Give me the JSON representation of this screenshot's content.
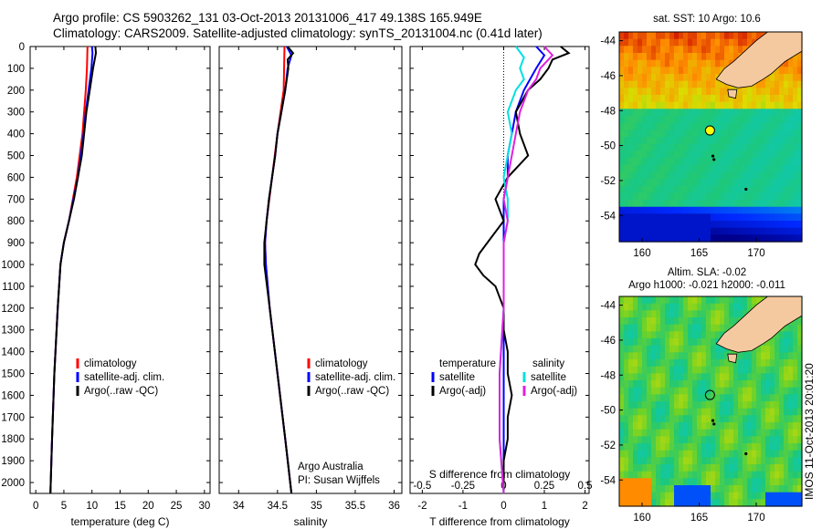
{
  "header": {
    "line1": "Argo profile: CS 5903262_131 03-Oct-2013 20131006_417 49.138S 165.949E",
    "line2": "Climatology: CARS2009. Satellite-adjusted climatology: synTS_20131004.nc (0.41d later)"
  },
  "credits": {
    "org": "Argo Australia",
    "pi": "PI: Susan Wijffels"
  },
  "sidebar_stamp": "IMOS 11-Oct-2013 20:01:20",
  "colors": {
    "climatology": "#ff0000",
    "satellite": "#0000ff",
    "argo": "#000000",
    "salinity_sat": "#00e0e0",
    "salinity_argo": "#e020e0",
    "land": "#f5c9a0"
  },
  "chart_data": [
    {
      "type": "line",
      "name": "temperature-profile",
      "xlabel": "temperature (deg C)",
      "ylabel": "",
      "xlim": [
        -1,
        31
      ],
      "ylim": [
        2050,
        0
      ],
      "xticks": [
        0,
        5,
        10,
        15,
        20,
        25,
        30
      ],
      "yticks": [
        0,
        100,
        200,
        300,
        400,
        500,
        600,
        700,
        800,
        900,
        1000,
        1100,
        1200,
        1300,
        1400,
        1500,
        1600,
        1700,
        1800,
        1900,
        2000
      ],
      "legend": [
        "climatology",
        "satellite-adj. clim.",
        "Argo(..raw -QC)"
      ],
      "series": [
        {
          "depth": [
            0,
            100,
            200,
            400,
            600,
            800,
            900,
            1000,
            1200,
            1500,
            1800,
            2050
          ],
          "values": [
            9.2,
            9.1,
            8.9,
            8.3,
            7.3,
            5.9,
            5.0,
            4.4,
            3.9,
            3.3,
            2.9,
            2.6
          ]
        },
        {
          "depth": [
            0,
            30,
            100,
            200,
            300,
            400,
            500,
            600,
            700,
            800,
            900,
            1000,
            1200,
            1500,
            1800,
            2050
          ],
          "values": [
            10.0,
            10.1,
            9.9,
            9.4,
            8.9,
            8.5,
            8.0,
            7.5,
            6.7,
            5.9,
            5.0,
            4.4,
            3.9,
            3.3,
            2.9,
            2.6
          ]
        },
        {
          "depth": [
            0,
            30,
            100,
            200,
            300,
            400,
            500,
            600,
            700,
            800,
            900,
            1000,
            1200,
            1500,
            1800,
            2050
          ],
          "values": [
            10.6,
            10.7,
            10.2,
            9.6,
            9.0,
            8.6,
            8.2,
            7.5,
            6.8,
            5.9,
            5.0,
            4.4,
            3.9,
            3.3,
            2.9,
            2.6
          ]
        }
      ]
    },
    {
      "type": "line",
      "name": "salinity-profile",
      "xlabel": "salinity",
      "ylabel": "",
      "xlim": [
        33.75,
        36.1
      ],
      "ylim": [
        2050,
        0
      ],
      "xticks": [
        34,
        34.5,
        35,
        35.5,
        36
      ],
      "legend": [
        "climatology",
        "satellite-adj. clim.",
        "Argo(..raw -QC)"
      ],
      "series": [
        {
          "depth": [
            0,
            200,
            400,
            600,
            800,
            900,
            1000,
            1200,
            1500,
            1800,
            2050
          ],
          "values": [
            34.59,
            34.58,
            34.5,
            34.43,
            34.36,
            34.34,
            34.35,
            34.4,
            34.5,
            34.6,
            34.68
          ]
        },
        {
          "depth": [
            0,
            40,
            100,
            200,
            300,
            400,
            500,
            600,
            700,
            800,
            900,
            1000,
            1200,
            1500,
            1800,
            2050
          ],
          "values": [
            34.62,
            34.68,
            34.63,
            34.6,
            34.55,
            34.5,
            34.47,
            34.43,
            34.39,
            34.36,
            34.34,
            34.35,
            34.4,
            34.5,
            34.6,
            34.68
          ]
        },
        {
          "depth": [
            0,
            30,
            60,
            100,
            200,
            300,
            400,
            500,
            600,
            700,
            800,
            900,
            1000,
            1200,
            1500,
            1800,
            2050
          ],
          "values": [
            34.63,
            34.7,
            34.63,
            34.64,
            34.6,
            34.55,
            34.5,
            34.47,
            34.43,
            34.39,
            34.36,
            34.33,
            34.33,
            34.4,
            34.5,
            34.6,
            34.68
          ]
        }
      ]
    },
    {
      "type": "line",
      "name": "difference-profile",
      "xlabel": "T difference from climatology",
      "title": "S difference from climatology",
      "xlim": [
        -2.3,
        2.1
      ],
      "ylim": [
        2050,
        0
      ],
      "xticks": [
        -2,
        -1,
        0,
        1,
        2
      ],
      "xtick_labels": [
        "-2",
        "-1",
        "0",
        "1",
        "2"
      ],
      "s_ticks": [
        -0.5,
        -0.25,
        0,
        0.25,
        0.5
      ],
      "s_tick_labels": [
        "-0.5",
        "-0.25",
        "0",
        "0.25",
        "0.5"
      ],
      "legend_temperature": [
        "temperature",
        "satellite",
        "Argo(-adj)"
      ],
      "legend_salinity": [
        "salinity",
        "satellite",
        "Argo(-adj)"
      ],
      "series": [
        {
          "depth": [
            0,
            40,
            100,
            200,
            300,
            400,
            500,
            600,
            700,
            800,
            900,
            1000,
            1200,
            1500,
            1800,
            2050
          ],
          "values": [
            0.8,
            1.0,
            0.8,
            0.5,
            0.3,
            0.2,
            0.1,
            0.1,
            0.0,
            0.0,
            0.0,
            0.0,
            0.0,
            0.0,
            0.0,
            0.0
          ]
        },
        {
          "depth": [
            0,
            30,
            60,
            100,
            150,
            200,
            300,
            400,
            500,
            600,
            700,
            800,
            900,
            950,
            1000,
            1050,
            1100,
            1200,
            1300,
            1400,
            1500,
            1600,
            1700,
            1800,
            1900,
            2050
          ],
          "values": [
            1.4,
            1.6,
            1.2,
            1.1,
            0.9,
            0.6,
            0.3,
            0.4,
            0.6,
            0.1,
            -0.2,
            0.0,
            -0.4,
            -0.6,
            -0.7,
            -0.5,
            -0.2,
            0.0,
            0.0,
            0.1,
            0.1,
            0.2,
            0.1,
            0.1,
            0.0,
            0.0
          ]
        },
        {
          "depth": [
            0,
            50,
            100,
            150,
            200,
            300,
            400,
            500,
            600,
            700,
            800,
            900,
            1000,
            1200,
            1500,
            1800,
            2050
          ],
          "values": [
            0.3,
            0.5,
            0.4,
            0.5,
            0.3,
            0.1,
            0.2,
            0.1,
            0.0,
            0.1,
            0.1,
            0.0,
            0.0,
            0.0,
            -0.1,
            -0.1,
            0.0
          ]
        },
        {
          "depth": [
            0,
            40,
            100,
            150,
            200,
            300,
            400,
            500,
            600,
            700,
            800,
            900,
            1000,
            1200,
            1500,
            1800,
            2050
          ],
          "values": [
            1.0,
            1.2,
            0.9,
            0.8,
            0.6,
            0.4,
            0.3,
            0.2,
            0.1,
            0.0,
            0.1,
            0.0,
            0.0,
            0.0,
            -0.1,
            -0.1,
            0.0
          ]
        }
      ]
    },
    {
      "type": "heatmap",
      "name": "sst-map",
      "title": "sat. SST: 10 Argo: 10.6",
      "xlim": [
        158,
        174
      ],
      "ylim": [
        -55.5,
        -43.5
      ],
      "xticks": [
        160,
        165,
        170
      ],
      "yticks": [
        -44,
        -46,
        -48,
        -50,
        -52,
        -54
      ],
      "float_lon": 165.949,
      "float_lat": -49.138
    },
    {
      "type": "heatmap",
      "name": "sla-map",
      "title": "Altim. SLA: -0.02",
      "subtitle": "Argo h1000: -0.021 h2000: -0.011",
      "xlim": [
        158,
        174
      ],
      "ylim": [
        -55.5,
        -43.5
      ],
      "xticks": [
        160,
        165,
        170
      ],
      "yticks": [
        -44,
        -46,
        -48,
        -50,
        -52,
        -54
      ],
      "float_lon": 165.949,
      "float_lat": -49.138
    }
  ]
}
